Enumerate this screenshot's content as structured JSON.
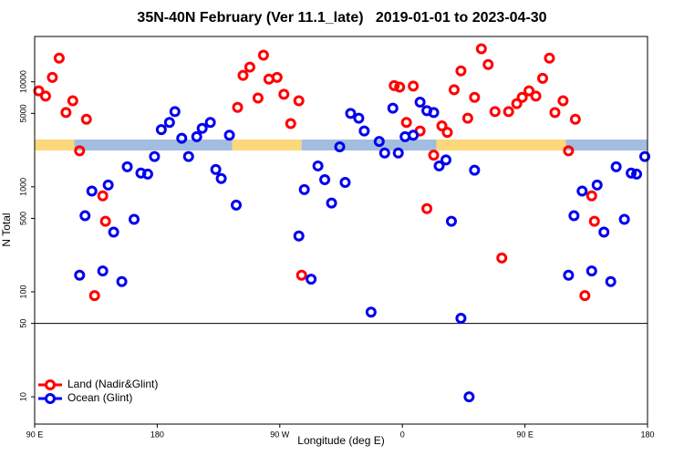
{
  "chart_data": {
    "type": "scatter",
    "title": "35N-40N February (Ver 11.1_late)   2019-01-01 to 2023-04-30",
    "x_label": "Longitude (deg E)",
    "y_label": "N Total",
    "log_y": true,
    "xlim": [
      90,
      540
    ],
    "ylim": [
      5.5,
      27000
    ],
    "xticks": [
      {
        "value": 90,
        "label": "90 E"
      },
      180,
      {
        "value": 270,
        "label": "90 W"
      },
      {
        "value": 360,
        "label": "0"
      },
      {
        "value": 450,
        "label": "90 E"
      },
      {
        "value": 540,
        "label": "180"
      }
    ],
    "yticks": [
      10,
      50,
      100,
      500,
      1000,
      5000,
      10000
    ],
    "hline": 50,
    "legend": "bottomleft",
    "surface_mask": [
      {
        "start": 90,
        "end": 119,
        "color": "#fcd87a"
      },
      {
        "start": 119,
        "end": 235,
        "color": "#a3bde0"
      },
      {
        "start": 235,
        "end": 286,
        "color": "#fcd87a"
      },
      {
        "start": 286,
        "end": 385,
        "color": "#a3bde0"
      },
      {
        "start": 385,
        "end": 480,
        "color": "#fcd87a"
      },
      {
        "start": 480,
        "end": 540,
        "color": "#a3bde0"
      }
    ],
    "series": [
      {
        "name": "Land (Nadir&Glint)",
        "color": "#ff0000",
        "x": [
          93,
          98,
          103,
          108,
          113,
          118,
          123,
          128,
          134,
          140,
          142,
          239,
          243,
          248,
          254,
          258,
          262,
          268,
          273,
          278,
          284,
          286,
          354,
          358,
          363,
          368,
          373,
          378,
          383,
          389,
          393,
          398,
          403,
          408,
          413,
          418,
          423,
          428,
          433,
          438,
          444,
          448,
          453,
          458,
          463,
          468,
          472,
          478,
          482,
          487,
          494,
          499,
          501
        ],
        "values": [
          8200,
          7300,
          11000,
          16800,
          5100,
          6600,
          2200,
          4400,
          92,
          820,
          470,
          5700,
          11500,
          13800,
          7000,
          17900,
          10600,
          11000,
          7600,
          4000,
          6600,
          144,
          9200,
          8900,
          4100,
          9100,
          3400,
          620,
          2000,
          3800,
          3300,
          8400,
          12700,
          4500,
          7100,
          20600,
          14600,
          5200,
          210,
          5200,
          6200,
          7100,
          8200,
          7300,
          10800,
          16800,
          5100,
          6600,
          2200,
          4400,
          92,
          820,
          470
        ]
      },
      {
        "name": "Ocean (Glint)",
        "color": "#0000ee",
        "x": [
          123,
          127,
          132,
          140,
          144,
          148,
          154,
          158,
          163,
          168,
          173,
          178,
          183,
          189,
          193,
          198,
          203,
          209,
          213,
          219,
          223,
          227,
          233,
          238,
          284,
          288,
          293,
          298,
          303,
          308,
          314,
          318,
          322,
          328,
          332,
          337,
          343,
          347,
          353,
          357,
          362,
          368,
          373,
          378,
          383,
          387,
          392,
          396,
          403,
          409,
          413,
          482,
          486,
          492,
          499,
          503,
          508,
          513,
          517,
          523,
          528,
          532,
          538
        ],
        "values": [
          144,
          530,
          910,
          158,
          1040,
          370,
          125,
          1550,
          490,
          1350,
          1320,
          1940,
          3500,
          4100,
          5200,
          2900,
          1940,
          3000,
          3600,
          4100,
          1460,
          1200,
          3100,
          670,
          340,
          940,
          132,
          1580,
          1170,
          700,
          2400,
          1100,
          5000,
          4500,
          3400,
          64,
          2700,
          2100,
          5600,
          2100,
          3000,
          3100,
          6400,
          5300,
          5100,
          1580,
          1800,
          470,
          56,
          10,
          1440,
          144,
          530,
          910,
          158,
          1040,
          370,
          125,
          1550,
          490,
          1350,
          1320,
          1940
        ]
      }
    ]
  }
}
